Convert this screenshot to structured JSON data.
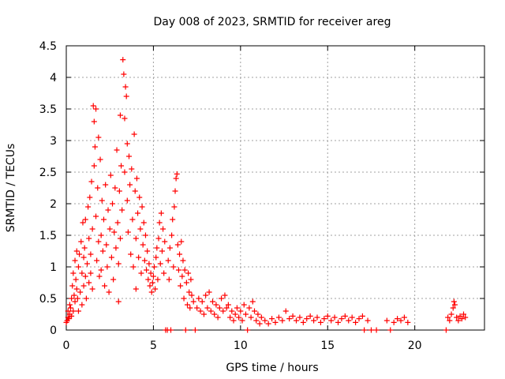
{
  "chart_data": {
    "type": "scatter",
    "title": "Day 008 of 2023, SRMTID for receiver areg",
    "xlabel": "GPS time / hours",
    "ylabel": "SRMTID / TECUs",
    "xlim": [
      0,
      24
    ],
    "ylim": [
      0,
      4.5
    ],
    "x_ticks": [
      0,
      5,
      10,
      15,
      20
    ],
    "x_tick_labels": [
      "0",
      "5",
      "10",
      "15",
      "20"
    ],
    "y_ticks": [
      0,
      0.5,
      1,
      1.5,
      2,
      2.5,
      3,
      3.5,
      4,
      4.5
    ],
    "y_tick_labels": [
      "0",
      "0.5",
      "1",
      "1.5",
      "2",
      "2.5",
      "3",
      "3.5",
      "4",
      "4.5"
    ],
    "grid": true,
    "marker": "plus",
    "series": [
      {
        "name": "SRMTID",
        "color": "#ff0000",
        "points": [
          [
            0.0,
            0.12
          ],
          [
            0.05,
            0.15
          ],
          [
            0.1,
            0.2
          ],
          [
            0.1,
            0.3
          ],
          [
            0.15,
            0.18
          ],
          [
            0.2,
            0.4
          ],
          [
            0.2,
            0.25
          ],
          [
            0.25,
            0.35
          ],
          [
            0.3,
            0.5
          ],
          [
            0.3,
            0.22
          ],
          [
            0.35,
            0.7
          ],
          [
            0.4,
            0.3
          ],
          [
            0.4,
            0.9
          ],
          [
            0.45,
            0.55
          ],
          [
            0.5,
            1.1
          ],
          [
            0.5,
            0.45
          ],
          [
            0.55,
            0.8
          ],
          [
            0.6,
            1.25
          ],
          [
            0.6,
            0.65
          ],
          [
            0.65,
            0.5
          ],
          [
            0.7,
            1.0
          ],
          [
            0.7,
            0.3
          ],
          [
            0.75,
            1.2
          ],
          [
            0.8,
            0.6
          ],
          [
            0.85,
            1.4
          ],
          [
            0.9,
            0.9
          ],
          [
            0.9,
            0.4
          ],
          [
            0.95,
            1.7
          ],
          [
            1.0,
            1.15
          ],
          [
            1.0,
            0.7
          ],
          [
            1.05,
            1.3
          ],
          [
            1.1,
            0.85
          ],
          [
            1.1,
            1.75
          ],
          [
            1.15,
            0.5
          ],
          [
            1.2,
            1.05
          ],
          [
            1.25,
            1.95
          ],
          [
            1.3,
            1.45
          ],
          [
            1.3,
            0.75
          ],
          [
            1.35,
            2.1
          ],
          [
            1.4,
            1.2
          ],
          [
            1.4,
            0.9
          ],
          [
            1.45,
            2.35
          ],
          [
            1.5,
            1.6
          ],
          [
            1.5,
            0.65
          ],
          [
            1.55,
            3.55
          ],
          [
            1.6,
            2.6
          ],
          [
            1.6,
            3.3
          ],
          [
            1.65,
            2.9
          ],
          [
            1.7,
            1.8
          ],
          [
            1.7,
            3.5
          ],
          [
            1.75,
            1.1
          ],
          [
            1.8,
            2.25
          ],
          [
            1.85,
            1.4
          ],
          [
            1.85,
            3.05
          ],
          [
            1.9,
            0.85
          ],
          [
            1.95,
            2.7
          ],
          [
            2.0,
            1.5
          ],
          [
            2.0,
            0.95
          ],
          [
            2.05,
            2.05
          ],
          [
            2.1,
            1.25
          ],
          [
            2.15,
            1.75
          ],
          [
            2.2,
            0.7
          ],
          [
            2.25,
            2.3
          ],
          [
            2.3,
            1.35
          ],
          [
            2.35,
            1.0
          ],
          [
            2.4,
            1.9
          ],
          [
            2.45,
            0.6
          ],
          [
            2.5,
            1.6
          ],
          [
            2.55,
            2.45
          ],
          [
            2.6,
            1.15
          ],
          [
            2.65,
            2.0
          ],
          [
            2.7,
            0.8
          ],
          [
            2.75,
            1.55
          ],
          [
            2.8,
            2.25
          ],
          [
            2.85,
            1.3
          ],
          [
            2.9,
            2.85
          ],
          [
            2.95,
            1.7
          ],
          [
            3.0,
            0.45
          ],
          [
            3.0,
            1.05
          ],
          [
            3.05,
            2.2
          ],
          [
            3.1,
            1.45
          ],
          [
            3.1,
            3.4
          ],
          [
            3.15,
            2.6
          ],
          [
            3.2,
            1.9
          ],
          [
            3.25,
            4.28
          ],
          [
            3.3,
            4.05
          ],
          [
            3.35,
            3.35
          ],
          [
            3.35,
            2.5
          ],
          [
            3.4,
            3.85
          ],
          [
            3.45,
            3.7
          ],
          [
            3.5,
            2.95
          ],
          [
            3.5,
            2.05
          ],
          [
            3.55,
            1.55
          ],
          [
            3.6,
            2.75
          ],
          [
            3.65,
            2.3
          ],
          [
            3.7,
            1.2
          ],
          [
            3.75,
            2.55
          ],
          [
            3.8,
            1.75
          ],
          [
            3.85,
            1.0
          ],
          [
            3.9,
            3.1
          ],
          [
            3.95,
            2.2
          ],
          [
            4.0,
            1.45
          ],
          [
            4.0,
            0.65
          ],
          [
            4.05,
            2.4
          ],
          [
            4.1,
            1.85
          ],
          [
            4.15,
            1.15
          ],
          [
            4.2,
            2.1
          ],
          [
            4.25,
            1.6
          ],
          [
            4.3,
            0.9
          ],
          [
            4.35,
            1.95
          ],
          [
            4.4,
            1.35
          ],
          [
            4.45,
            1.7
          ],
          [
            4.5,
            1.1
          ],
          [
            4.55,
            1.5
          ],
          [
            4.6,
            0.95
          ],
          [
            4.65,
            1.25
          ],
          [
            4.7,
            0.8
          ],
          [
            4.75,
            1.05
          ],
          [
            4.8,
            0.7
          ],
          [
            4.85,
            0.9
          ],
          [
            4.9,
            0.6
          ],
          [
            4.95,
            0.75
          ],
          [
            5.0,
            0.85
          ],
          [
            5.05,
            1.0
          ],
          [
            5.1,
            0.65
          ],
          [
            5.15,
            1.15
          ],
          [
            5.2,
            1.3
          ],
          [
            5.25,
            0.8
          ],
          [
            5.3,
            1.45
          ],
          [
            5.35,
            1.7
          ],
          [
            5.4,
            1.05
          ],
          [
            5.45,
            1.85
          ],
          [
            5.5,
            1.25
          ],
          [
            5.55,
            1.6
          ],
          [
            5.6,
            0.9
          ],
          [
            5.65,
            1.4
          ],
          [
            5.7,
            0.0
          ],
          [
            5.8,
            0.0
          ],
          [
            5.85,
            1.1
          ],
          [
            5.9,
            0.8
          ],
          [
            5.95,
            1.3
          ],
          [
            6.0,
            0.0
          ],
          [
            6.05,
            1.5
          ],
          [
            6.1,
            1.75
          ],
          [
            6.15,
            1.0
          ],
          [
            6.2,
            1.95
          ],
          [
            6.25,
            2.2
          ],
          [
            6.3,
            2.4
          ],
          [
            6.35,
            2.47
          ],
          [
            6.4,
            1.35
          ],
          [
            6.45,
            0.95
          ],
          [
            6.5,
            1.2
          ],
          [
            6.55,
            0.7
          ],
          [
            6.6,
            1.4
          ],
          [
            6.65,
            0.85
          ],
          [
            6.7,
            1.1
          ],
          [
            6.75,
            0.5
          ],
          [
            6.8,
            0.95
          ],
          [
            6.85,
            0.0
          ],
          [
            6.9,
            0.75
          ],
          [
            6.95,
            0.4
          ],
          [
            7.0,
            0.9
          ],
          [
            7.05,
            0.6
          ],
          [
            7.1,
            0.35
          ],
          [
            7.15,
            0.8
          ],
          [
            7.2,
            0.55
          ],
          [
            7.3,
            0.45
          ],
          [
            7.4,
            0.0
          ],
          [
            7.5,
            0.35
          ],
          [
            7.6,
            0.5
          ],
          [
            7.7,
            0.3
          ],
          [
            7.8,
            0.45
          ],
          [
            7.9,
            0.25
          ],
          [
            8.0,
            0.55
          ],
          [
            8.1,
            0.35
          ],
          [
            8.2,
            0.6
          ],
          [
            8.3,
            0.3
          ],
          [
            8.4,
            0.45
          ],
          [
            8.5,
            0.25
          ],
          [
            8.6,
            0.4
          ],
          [
            8.7,
            0.2
          ],
          [
            8.8,
            0.35
          ],
          [
            8.9,
            0.5
          ],
          [
            9.0,
            0.3
          ],
          [
            9.1,
            0.55
          ],
          [
            9.2,
            0.35
          ],
          [
            9.3,
            0.4
          ],
          [
            9.4,
            0.2
          ],
          [
            9.5,
            0.3
          ],
          [
            9.6,
            0.15
          ],
          [
            9.7,
            0.25
          ],
          [
            9.8,
            0.35
          ],
          [
            9.9,
            0.2
          ],
          [
            10.0,
            0.3
          ],
          [
            10.1,
            0.15
          ],
          [
            10.2,
            0.4
          ],
          [
            10.3,
            0.25
          ],
          [
            10.4,
            0.0
          ],
          [
            10.5,
            0.35
          ],
          [
            10.6,
            0.2
          ],
          [
            10.7,
            0.45
          ],
          [
            10.8,
            0.3
          ],
          [
            10.9,
            0.15
          ],
          [
            11.0,
            0.25
          ],
          [
            11.1,
            0.1
          ],
          [
            11.2,
            0.2
          ],
          [
            11.4,
            0.15
          ],
          [
            11.6,
            0.1
          ],
          [
            11.8,
            0.18
          ],
          [
            12.0,
            0.12
          ],
          [
            12.2,
            0.2
          ],
          [
            12.4,
            0.15
          ],
          [
            12.6,
            0.3
          ],
          [
            12.8,
            0.18
          ],
          [
            13.0,
            0.22
          ],
          [
            13.2,
            0.15
          ],
          [
            13.4,
            0.2
          ],
          [
            13.6,
            0.12
          ],
          [
            13.8,
            0.18
          ],
          [
            14.0,
            0.22
          ],
          [
            14.2,
            0.15
          ],
          [
            14.4,
            0.2
          ],
          [
            14.6,
            0.12
          ],
          [
            14.8,
            0.18
          ],
          [
            15.0,
            0.22
          ],
          [
            15.2,
            0.15
          ],
          [
            15.4,
            0.2
          ],
          [
            15.6,
            0.12
          ],
          [
            15.8,
            0.18
          ],
          [
            16.0,
            0.22
          ],
          [
            16.2,
            0.15
          ],
          [
            16.4,
            0.2
          ],
          [
            16.6,
            0.12
          ],
          [
            16.8,
            0.18
          ],
          [
            17.0,
            0.22
          ],
          [
            17.1,
            0.0
          ],
          [
            17.3,
            0.15
          ],
          [
            17.5,
            0.0
          ],
          [
            17.8,
            0.0
          ],
          [
            18.4,
            0.15
          ],
          [
            18.6,
            0.0
          ],
          [
            18.8,
            0.12
          ],
          [
            19.0,
            0.18
          ],
          [
            19.2,
            0.15
          ],
          [
            19.4,
            0.2
          ],
          [
            19.6,
            0.12
          ],
          [
            21.8,
            0.0
          ],
          [
            21.9,
            0.2
          ],
          [
            22.0,
            0.15
          ],
          [
            22.1,
            0.25
          ],
          [
            22.2,
            0.35
          ],
          [
            22.25,
            0.45
          ],
          [
            22.3,
            0.4
          ],
          [
            22.4,
            0.2
          ],
          [
            22.5,
            0.15
          ],
          [
            22.6,
            0.22
          ],
          [
            22.7,
            0.18
          ],
          [
            22.8,
            0.25
          ],
          [
            22.9,
            0.2
          ]
        ]
      }
    ]
  }
}
